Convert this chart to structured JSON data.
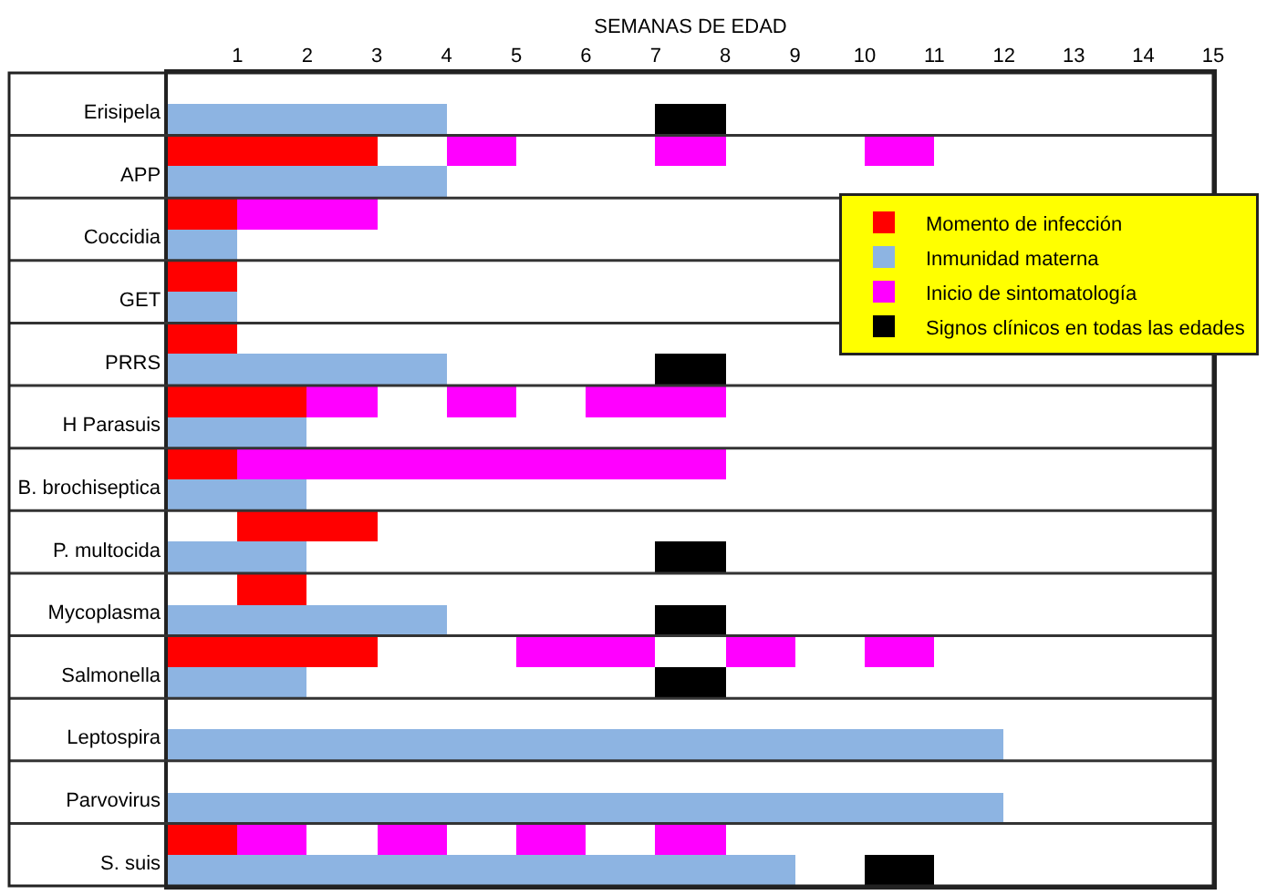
{
  "chart_data": {
    "type": "bar",
    "orientation": "horizontal",
    "xlabel": "SEMANAS DE EDAD",
    "categories": [
      "Erisipela",
      "APP",
      "Coccidia",
      "GET",
      "PRRS",
      "H Parasuis",
      "B. brochiseptica",
      "P. multocida",
      "Mycoplasma",
      "Salmonella",
      "Leptospira",
      "Parvovirus",
      "S. suis"
    ],
    "series": [
      {
        "name": "Momento de infección",
        "color": "#ff0000",
        "values": [
          null,
          3,
          1,
          1,
          1,
          2,
          1,
          2,
          1,
          3,
          null,
          null,
          1
        ],
        "base": [
          null,
          0,
          0,
          0,
          0,
          0,
          0,
          1,
          1,
          0,
          null,
          null,
          0
        ]
      },
      {
        "name": "Inmunidad materna",
        "color": "#8db4e2",
        "values": [
          4,
          4,
          1,
          1,
          4,
          2,
          2,
          2,
          4,
          2,
          12,
          12,
          9
        ],
        "base": [
          0,
          0,
          0,
          0,
          0,
          0,
          0,
          0,
          0,
          0,
          0,
          0,
          0
        ]
      },
      {
        "name": "Inicio de sintomatología",
        "color": "#ff00ff",
        "values": [
          null,
          1,
          2,
          null,
          null,
          1,
          7,
          null,
          null,
          2,
          null,
          null,
          1
        ],
        "base": [
          null,
          4,
          1,
          null,
          null,
          2,
          1,
          null,
          null,
          5,
          null,
          null,
          1
        ]
      },
      {
        "name": "Signos clínicos en todas las edades",
        "color": "#000000",
        "values": [
          1,
          null,
          null,
          null,
          1,
          null,
          null,
          1,
          1,
          1,
          null,
          null,
          1
        ],
        "base": [
          7,
          null,
          null,
          null,
          7,
          null,
          null,
          7,
          7,
          7,
          null,
          null,
          10
        ]
      },
      {
        "color": "#ff00ff",
        "values": [
          null,
          1,
          null,
          null,
          null,
          1,
          null,
          null,
          null,
          1,
          null,
          null,
          1
        ],
        "base": [
          null,
          7,
          null,
          null,
          null,
          4,
          null,
          null,
          null,
          8,
          null,
          null,
          3
        ]
      },
      {
        "color": "#ff00ff",
        "values": [
          null,
          1,
          null,
          null,
          null,
          2,
          null,
          null,
          null,
          1,
          null,
          null,
          1
        ],
        "base": [
          null,
          10,
          null,
          null,
          null,
          6,
          null,
          null,
          null,
          10,
          null,
          null,
          5
        ]
      },
      {
        "color": "#ff00ff",
        "values": [
          null,
          null,
          null,
          null,
          null,
          null,
          null,
          null,
          null,
          null,
          null,
          null,
          1
        ],
        "base": [
          null,
          null,
          null,
          null,
          null,
          null,
          null,
          null,
          null,
          null,
          null,
          null,
          7
        ]
      }
    ],
    "xlim": [
      0,
      15
    ],
    "xticks": [
      1,
      2,
      3,
      4,
      5,
      6,
      7,
      8,
      9,
      10,
      11,
      12,
      13,
      14,
      15
    ],
    "grid": "y",
    "legend": "top right"
  }
}
